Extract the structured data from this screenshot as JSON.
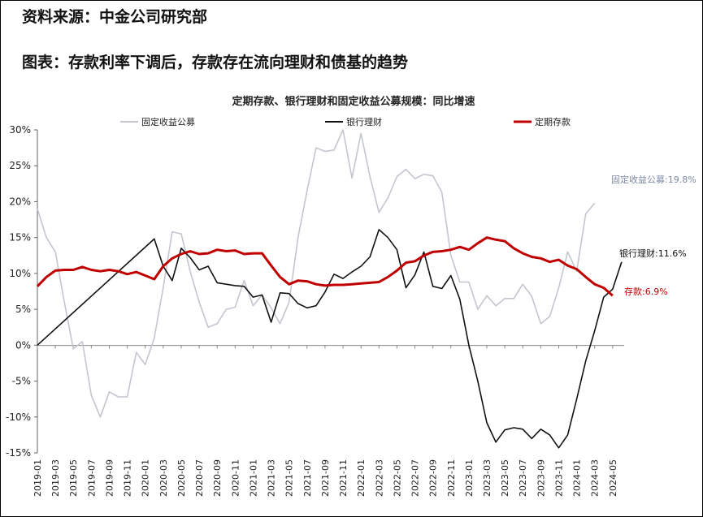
{
  "header": {
    "source": "资料来源：中金公司研究部",
    "figure_title": "图表：存款利率下调后，存款存在流向理财和债基的趋势"
  },
  "chart_data": {
    "type": "line",
    "title": "定期存款、银行理财和固定收益公募规模：同比增速",
    "xlabel": "",
    "ylabel": "",
    "ylim": [
      -15,
      30
    ],
    "yticks": [
      "30%",
      "25%",
      "20%",
      "15%",
      "10%",
      "5%",
      "0%",
      "-5%",
      "-10%",
      "-15%"
    ],
    "ytick_values": [
      30,
      25,
      20,
      15,
      10,
      5,
      0,
      -5,
      -10,
      -15
    ],
    "xticks": [
      "2019-01",
      "2019-03",
      "2019-05",
      "2019-07",
      "2019-09",
      "2019-11",
      "2020-01",
      "2020-03",
      "2020-05",
      "2020-07",
      "2020-09",
      "2020-11",
      "2021-01",
      "2021-03",
      "2021-05",
      "2021-07",
      "2021-09",
      "2021-11",
      "2022-01",
      "2022-03",
      "2022-05",
      "2022-07",
      "2022-09",
      "2022-11",
      "2023-01",
      "2023-03",
      "2023-05",
      "2023-07",
      "2023-09",
      "2023-11",
      "2024-01",
      "2024-03",
      "2024-05"
    ],
    "grid": false,
    "legend_position": "top",
    "series": [
      {
        "name": "固定收益公募",
        "color": "#c4c6cf",
        "end_label": "固定收益公募:19.8%",
        "end_label_color": "#7d8aa3",
        "values": [
          19,
          15,
          13,
          6,
          -0.5,
          0.5,
          -7,
          -10,
          -6.5,
          -7.2,
          -7.2,
          -1,
          -2.7,
          1,
          8,
          15.8,
          15.5,
          10.3,
          6,
          2.5,
          3,
          5,
          5.3,
          9,
          5.5,
          7,
          5.2,
          3,
          6,
          15,
          21.5,
          27.5,
          27,
          27.2,
          30,
          23.3,
          29.5,
          23.5,
          18.5,
          20.5,
          23.5,
          24.5,
          23.2,
          23.8,
          23.6,
          21.3,
          12.5,
          8.8,
          8.8,
          5,
          6.9,
          5.5,
          6.5,
          6.5,
          8.5,
          6.8,
          3,
          4,
          8,
          13,
          10.3,
          18.3,
          19.8
        ]
      },
      {
        "name": "银行理财",
        "color": "#111111",
        "end_label": "银行理财:11.6%",
        "end_label_color": "#111111",
        "values": [
          0,
          null,
          null,
          null,
          null,
          null,
          null,
          null,
          null,
          null,
          null,
          null,
          null,
          14.8,
          11,
          9,
          13.5,
          12.2,
          10.5,
          11,
          8.7,
          8.5,
          8.3,
          8.2,
          6.7,
          7,
          3.2,
          7.3,
          7.2,
          5.8,
          5.2,
          5.5,
          7.4,
          9.9,
          9.3,
          10.2,
          11,
          12.3,
          16.1,
          15,
          13.3,
          8,
          9.8,
          13,
          8.2,
          7.9,
          9.7,
          6.4,
          0,
          -5,
          -10.8,
          -13.5,
          -11.8,
          -11.5,
          -11.7,
          -13,
          -11.7,
          -12.5,
          -14.3,
          -12.5,
          -7.5,
          -2.2,
          2,
          6.7,
          7.8,
          11.6
        ]
      },
      {
        "name": "定期存款",
        "color": "#c00000",
        "end_label": "存款:6.9%",
        "end_label_color": "#c00000",
        "values": [
          8.2,
          9.5,
          10.4,
          10.5,
          10.5,
          10.9,
          10.5,
          10.3,
          10.5,
          10.3,
          9.9,
          10.2,
          9.7,
          9.2,
          11,
          12.1,
          12.7,
          13.1,
          12.7,
          12.8,
          13.3,
          13.1,
          13.2,
          12.7,
          12.8,
          12.8,
          11.1,
          9.5,
          8.5,
          9,
          8.9,
          8.5,
          8.3,
          8.4,
          8.4,
          8.5,
          8.6,
          8.7,
          8.8,
          9.5,
          10.4,
          11.5,
          11.7,
          12.5,
          13,
          13.1,
          13.3,
          13.7,
          13.3,
          14.2,
          15,
          14.7,
          14.5,
          13.5,
          12.8,
          12.3,
          12.1,
          11.6,
          11.9,
          11.1,
          10.6,
          9.5,
          8.5,
          8,
          6.9
        ]
      }
    ]
  }
}
